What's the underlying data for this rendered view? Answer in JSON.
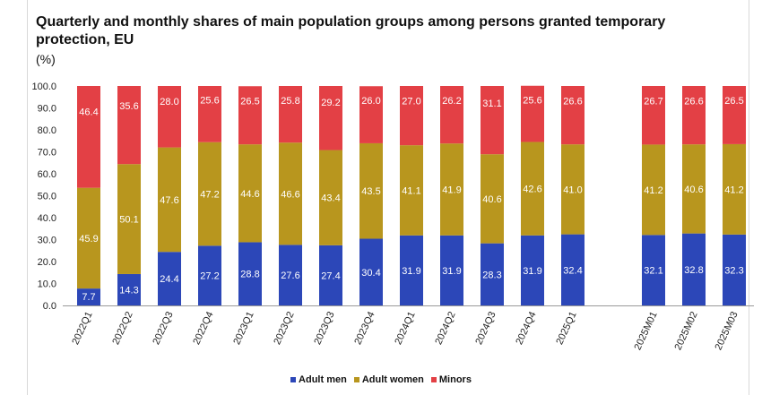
{
  "chart_data": {
    "type": "bar",
    "stacked": true,
    "title": "Quarterly and monthly shares of main population groups among persons granted temporary protection, EU",
    "unit": "(%)",
    "ylim": [
      0,
      100
    ],
    "yticks": [
      "0.0",
      "10.0",
      "20.0",
      "30.0",
      "40.0",
      "50.0",
      "60.0",
      "70.0",
      "80.0",
      "90.0",
      "100.0"
    ],
    "categories": [
      "2022Q1",
      "2022Q2",
      "2022Q3",
      "2022Q4",
      "2023Q1",
      "2023Q2",
      "2023Q3",
      "2023Q4",
      "2024Q1",
      "2024Q2",
      "2024Q3",
      "2024Q4",
      "2025Q1",
      "2025M01",
      "2025M02",
      "2025M03"
    ],
    "series": [
      {
        "name": "Adult men",
        "color": "#2c47b8",
        "values": [
          7.7,
          14.3,
          24.4,
          27.2,
          28.8,
          27.6,
          27.4,
          30.4,
          31.9,
          31.9,
          28.3,
          31.9,
          32.4,
          32.1,
          32.8,
          32.3
        ]
      },
      {
        "name": "Adult women",
        "color": "#b8961e",
        "values": [
          45.9,
          50.1,
          47.6,
          47.2,
          44.6,
          46.6,
          43.4,
          43.5,
          41.1,
          41.9,
          40.6,
          42.6,
          41.0,
          41.2,
          40.6,
          41.2
        ]
      },
      {
        "name": "Minors",
        "color": "#e34045",
        "values": [
          46.4,
          35.6,
          28.0,
          25.6,
          26.5,
          25.8,
          29.2,
          26.0,
          27.0,
          26.2,
          31.1,
          25.6,
          26.6,
          26.7,
          26.6,
          26.5
        ]
      }
    ],
    "legend_position": "bottom-center",
    "grid": false
  }
}
